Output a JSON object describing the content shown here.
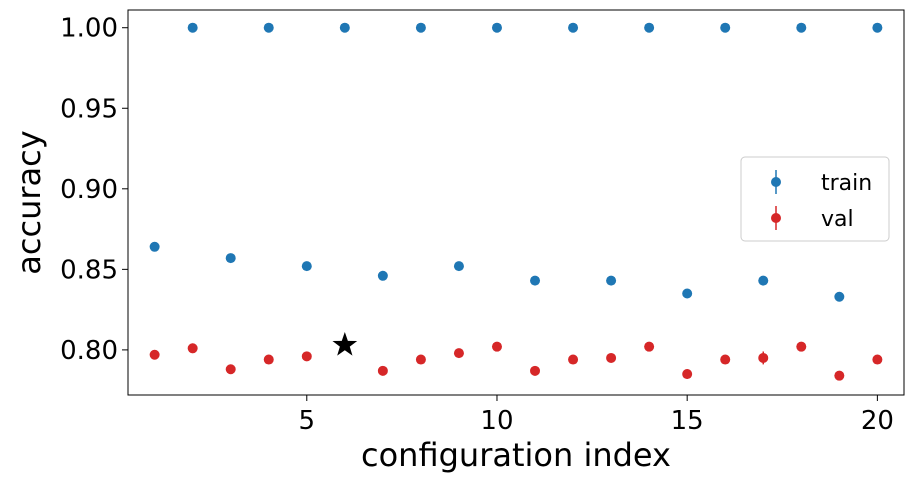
{
  "chart_data": {
    "type": "scatter",
    "title": "",
    "xlabel": "configuration index",
    "ylabel": "accuracy",
    "xlim": [
      0.3,
      20.7
    ],
    "ylim": [
      0.772,
      1.011
    ],
    "xticks": [
      5,
      10,
      15,
      20
    ],
    "yticks": [
      0.8,
      0.85,
      0.9,
      0.95,
      1.0
    ],
    "ytick_labels": [
      "0.80",
      "0.85",
      "0.90",
      "0.95",
      "1.00"
    ],
    "grid": false,
    "legend_position": "center-right",
    "series": [
      {
        "name": "train",
        "color": "#1f77b4",
        "marker": "circle-with-errorbar",
        "x": [
          1,
          2,
          3,
          4,
          5,
          6,
          7,
          8,
          9,
          10,
          11,
          12,
          13,
          14,
          15,
          16,
          17,
          18,
          19,
          20
        ],
        "y": [
          0.864,
          1.0,
          0.857,
          1.0,
          0.852,
          1.0,
          0.846,
          1.0,
          0.852,
          1.0,
          0.843,
          1.0,
          0.843,
          1.0,
          0.835,
          1.0,
          0.843,
          1.0,
          0.833,
          1.0
        ],
        "yerr": [
          0.001,
          0,
          0.001,
          0,
          0.001,
          0,
          0.001,
          0,
          0.001,
          0,
          0.001,
          0,
          0.001,
          0,
          0.001,
          0,
          0.001,
          0,
          0.001,
          0
        ]
      },
      {
        "name": "val",
        "color": "#d62728",
        "marker": "circle-with-errorbar",
        "x": [
          1,
          2,
          3,
          4,
          5,
          6,
          7,
          8,
          9,
          10,
          11,
          12,
          13,
          14,
          15,
          16,
          17,
          18,
          19,
          20
        ],
        "y": [
          0.797,
          0.801,
          0.788,
          0.794,
          0.796,
          0.803,
          0.787,
          0.794,
          0.798,
          0.802,
          0.787,
          0.794,
          0.795,
          0.802,
          0.785,
          0.794,
          0.795,
          0.802,
          0.784,
          0.794
        ],
        "yerr": [
          0.002,
          0.003,
          0.002,
          0.002,
          0.002,
          0.0,
          0.002,
          0.002,
          0.002,
          0.002,
          0.003,
          0.002,
          0.002,
          0.002,
          0.003,
          0.002,
          0.004,
          0.002,
          0.002,
          0.002
        ]
      }
    ],
    "highlight": {
      "marker": "star",
      "color": "#000000",
      "x": 6,
      "y": 0.803
    }
  }
}
